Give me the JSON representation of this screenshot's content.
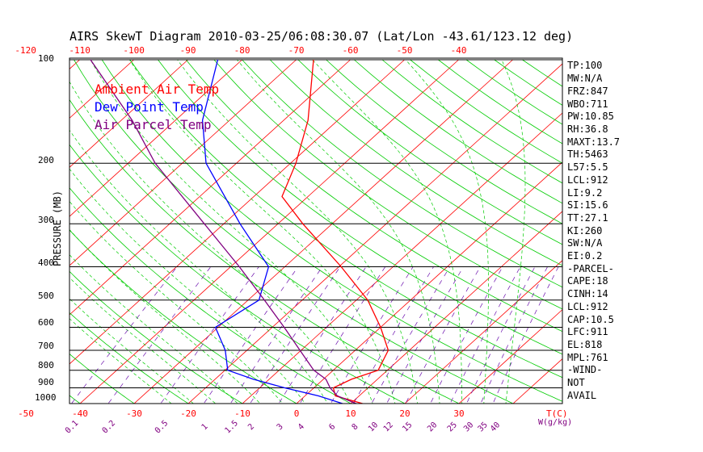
{
  "chart_data": {
    "type": "line",
    "title": "AIRS SkewT Diagram 2010-03-25/06:08:30.07 (Lat/Lon -43.61/123.12 deg)",
    "ylabel": "PRESSURE (MB)",
    "xlabel": "T(C)",
    "mixing_label": "W(g/kg)",
    "pressure_levels": [
      100,
      200,
      300,
      400,
      500,
      600,
      700,
      800,
      900,
      1000
    ],
    "top_temp_ticks": [
      "-120",
      "-110",
      "-100",
      "-90",
      "-80",
      "-70",
      "-60",
      "-50",
      "-40"
    ],
    "bottom_temp_ticks": [
      "-50",
      "-40",
      "-30",
      "-20",
      "-10",
      "0",
      "10",
      "20",
      "30"
    ],
    "mixing_ratio_ticks": [
      "0.1",
      "0.2",
      "0.5",
      "1",
      "1.5",
      "2",
      "3",
      "4",
      "6",
      "8",
      "10",
      "12",
      "15",
      "20",
      "25",
      "30",
      "35",
      "40"
    ],
    "legend": [
      {
        "name": "Ambient Air Temp",
        "color": "#ff0000"
      },
      {
        "name": "Dew Point Temp",
        "color": "#0000ff"
      },
      {
        "name": "Air Parcel Temp",
        "color": "#800080"
      }
    ],
    "series": [
      {
        "name": "Ambient Air Temp",
        "color": "#ff0000",
        "points": [
          [
            1000,
            12.2
          ],
          [
            950,
            5.6
          ],
          [
            900,
            3.6
          ],
          [
            850,
            5.2
          ],
          [
            800,
            8.3
          ],
          [
            700,
            6.1
          ],
          [
            600,
            0.0
          ],
          [
            500,
            -7.9
          ],
          [
            400,
            -19.6
          ],
          [
            300,
            -35.4
          ],
          [
            250,
            -44.8
          ],
          [
            200,
            -49.0
          ],
          [
            150,
            -55.5
          ],
          [
            100,
            -66.8
          ]
        ]
      },
      {
        "name": "Dew Point Temp",
        "color": "#0000ff",
        "points": [
          [
            1000,
            8.5
          ],
          [
            950,
            2.5
          ],
          [
            900,
            -5.4
          ],
          [
            850,
            -12.9
          ],
          [
            800,
            -19.5
          ],
          [
            700,
            -24.0
          ],
          [
            600,
            -30.5
          ],
          [
            500,
            -28.0
          ],
          [
            400,
            -33.0
          ],
          [
            300,
            -47.0
          ],
          [
            200,
            -65.6
          ],
          [
            150,
            -75.0
          ],
          [
            100,
            -84.5
          ]
        ]
      },
      {
        "name": "Air Parcel Temp",
        "color": "#800080",
        "points": [
          [
            1000,
            11.0
          ],
          [
            950,
            6.0
          ],
          [
            900,
            3.0
          ],
          [
            850,
            0.5
          ],
          [
            800,
            -3.6
          ],
          [
            700,
            -10.2
          ],
          [
            600,
            -17.8
          ],
          [
            500,
            -27.0
          ],
          [
            400,
            -38.4
          ],
          [
            300,
            -53.6
          ],
          [
            200,
            -75.0
          ],
          [
            150,
            -88.0
          ],
          [
            100,
            -108.0
          ]
        ]
      }
    ],
    "indices": [
      "TP:100",
      "MW:N/A",
      "FRZ:847",
      "WBO:711",
      "PW:10.85",
      "RH:36.8",
      "MAXT:13.7",
      "TH:5463",
      "L57:5.5",
      "LCL:912",
      "LI:9.2",
      "SI:15.6",
      "TT:27.1",
      "KI:260",
      "SW:N/A",
      "EI:0.2",
      "-PARCEL-",
      "CAPE:18",
      "CINH:14",
      "LCL:912",
      "CAP:10.5",
      "LFC:911",
      "EL:818",
      "MPL:761",
      "-WIND-",
      "NOT",
      "AVAIL"
    ],
    "colors": {
      "isotherm": "#ff0000",
      "dry_adiabat": "#00cc00",
      "moist_adiabat": "#00cc00",
      "mixing_ratio": "#6a0dad",
      "isobar": "#000000"
    }
  }
}
